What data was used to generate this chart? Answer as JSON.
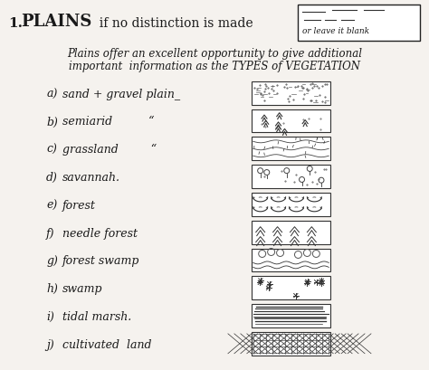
{
  "title_number": "1.",
  "title_word": "PLAINS",
  "title_rest": "  if no distinction is made",
  "subtitle_line1": "Plains offer an excellent opportunity to give additional",
  "subtitle_line2": "important  information as the TYPES of VEGETATION",
  "items": [
    {
      "label": "a)",
      "name": "sand + gravel plain_"
    },
    {
      "label": "b)",
      "name": "semiarid          “"
    },
    {
      "label": "c)",
      "name": "grassland         “"
    },
    {
      "label": "d)",
      "name": "savannah."
    },
    {
      "label": "e)",
      "name": "forest"
    },
    {
      "label": "f)",
      "name": "needle forest"
    },
    {
      "label": "g)",
      "name": "forest swamp"
    },
    {
      "label": "h)",
      "name": "swamp"
    },
    {
      "label": "i)",
      "name": "tidal marsh."
    },
    {
      "label": "j)",
      "name": "cultivated  land"
    }
  ],
  "box_label": "or leave it blank",
  "bg_color": "#f5f2ee",
  "text_color": "#1a1a1a",
  "box_color": "#ffffff",
  "box_edge": "#222222"
}
